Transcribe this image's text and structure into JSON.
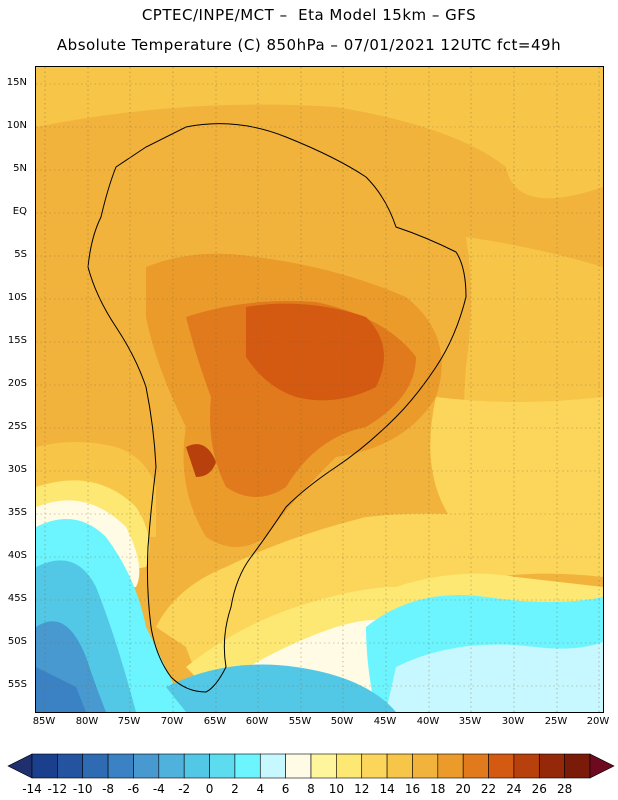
{
  "header": {
    "title_line1": "CPTEC/INPE/MCT –  Eta Model 15km – GFS",
    "title_line2": "Absolute Temperature (C) 850hPa – 07/01/2021 12UTC fct=49h"
  },
  "map": {
    "region": "South America",
    "lat_labels": [
      "15N",
      "10N",
      "5N",
      "EQ",
      "5S",
      "10S",
      "15S",
      "20S",
      "25S",
      "30S",
      "35S",
      "40S",
      "45S",
      "50S",
      "55S"
    ],
    "lon_labels": [
      "85W",
      "80W",
      "75W",
      "70W",
      "65W",
      "60W",
      "55W",
      "50W",
      "45W",
      "40W",
      "35W",
      "30W",
      "25W",
      "20W"
    ],
    "lat_range": [
      17,
      -58
    ],
    "lon_range": [
      -86,
      -19.5
    ]
  },
  "colorbar": {
    "labels": [
      "-14",
      "-12",
      "-10",
      "-8",
      "-6",
      "-4",
      "-2",
      "0",
      "2",
      "4",
      "6",
      "8",
      "10",
      "12",
      "14",
      "16",
      "18",
      "20",
      "22",
      "24",
      "26",
      "28"
    ],
    "colors": [
      "#1a3f8c",
      "#2454a0",
      "#2f6bb3",
      "#3a82c4",
      "#4799d0",
      "#4fb2dc",
      "#52c8e6",
      "#5ddcf0",
      "#6cf5ff",
      "#c8f8ff",
      "#fffbe4",
      "#fff59d",
      "#fde873",
      "#fbd65a",
      "#f7c648",
      "#f2b33c",
      "#ea9b2a",
      "#e07a1c",
      "#d35a10",
      "#b8400c",
      "#96280a",
      "#7a1a08"
    ],
    "left_arrow": "#20306e",
    "right_arrow": "#6e0a20"
  }
}
